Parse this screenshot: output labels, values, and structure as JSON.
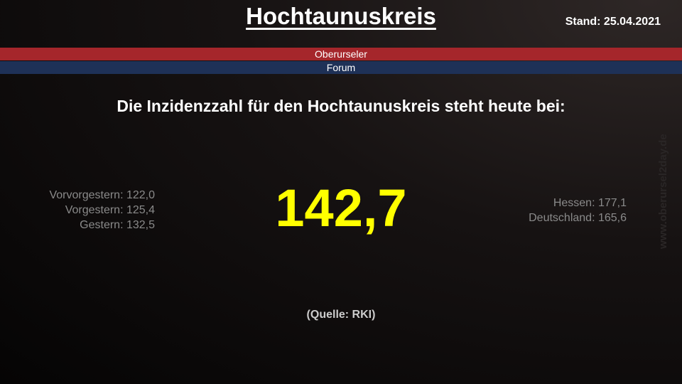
{
  "title": "Hochtaunuskreis",
  "stand": "Stand: 25.04.2021",
  "banner": {
    "line1": "Oberurseler",
    "line2": "Forum",
    "color1": "#a5262b",
    "color2": "#1e3157"
  },
  "headline": "Die Inzidenzzahl für den Hochtaunuskreis steht heute bei:",
  "incidence": "142,7",
  "previous": [
    "Vorvorgestern: 122,0",
    "Vorgestern: 125,4",
    "Gestern: 132,5"
  ],
  "comparison": [
    "Hessen: 177,1",
    "Deutschland: 165,6"
  ],
  "source": "(Quelle: RKI)",
  "watermark": "www.oberursel2day.de"
}
